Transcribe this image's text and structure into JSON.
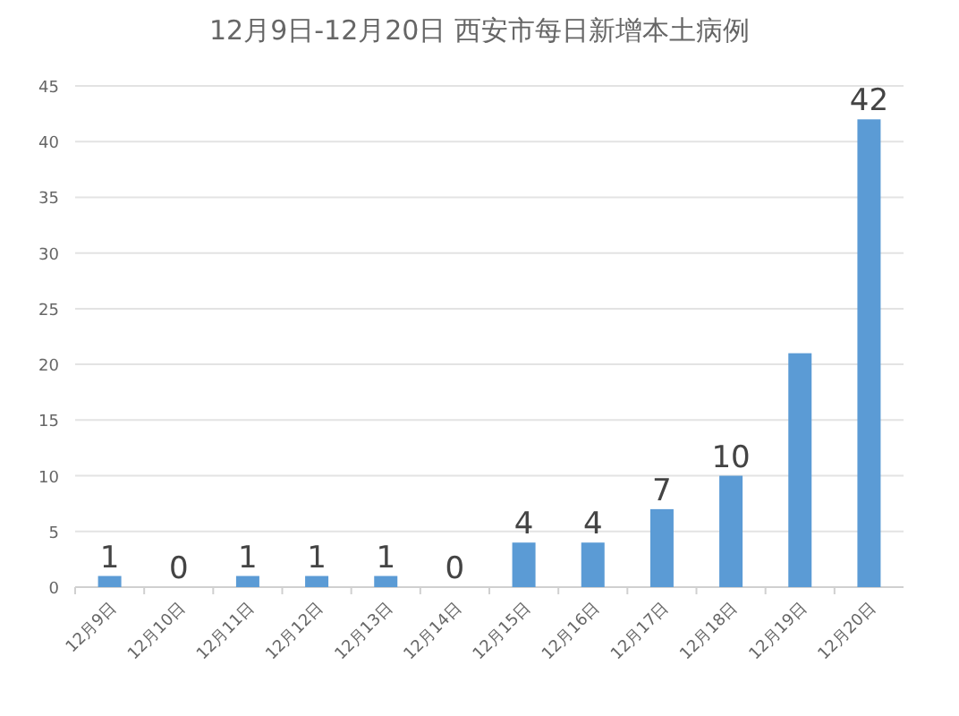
{
  "chart_data": {
    "type": "bar",
    "title": "12月9日-12月20日 西安市每日新增本土病例",
    "categories": [
      "12月9日",
      "12月10日",
      "12月11日",
      "12月12日",
      "12月13日",
      "12月14日",
      "12月15日",
      "12月16日",
      "12月17日",
      "12月18日",
      "12月19日",
      "12月20日"
    ],
    "values": [
      1,
      0,
      1,
      1,
      1,
      0,
      4,
      4,
      7,
      10,
      21,
      42
    ],
    "value_labels": [
      "1",
      "0",
      "1",
      "1",
      "1",
      "0",
      "4",
      "4",
      "7",
      "10",
      null,
      "42"
    ],
    "color": "#5b9bd5",
    "ylim": [
      0,
      45
    ],
    "yticks": [
      0,
      5,
      10,
      15,
      20,
      25,
      30,
      35,
      40,
      45
    ],
    "grid": "y"
  }
}
